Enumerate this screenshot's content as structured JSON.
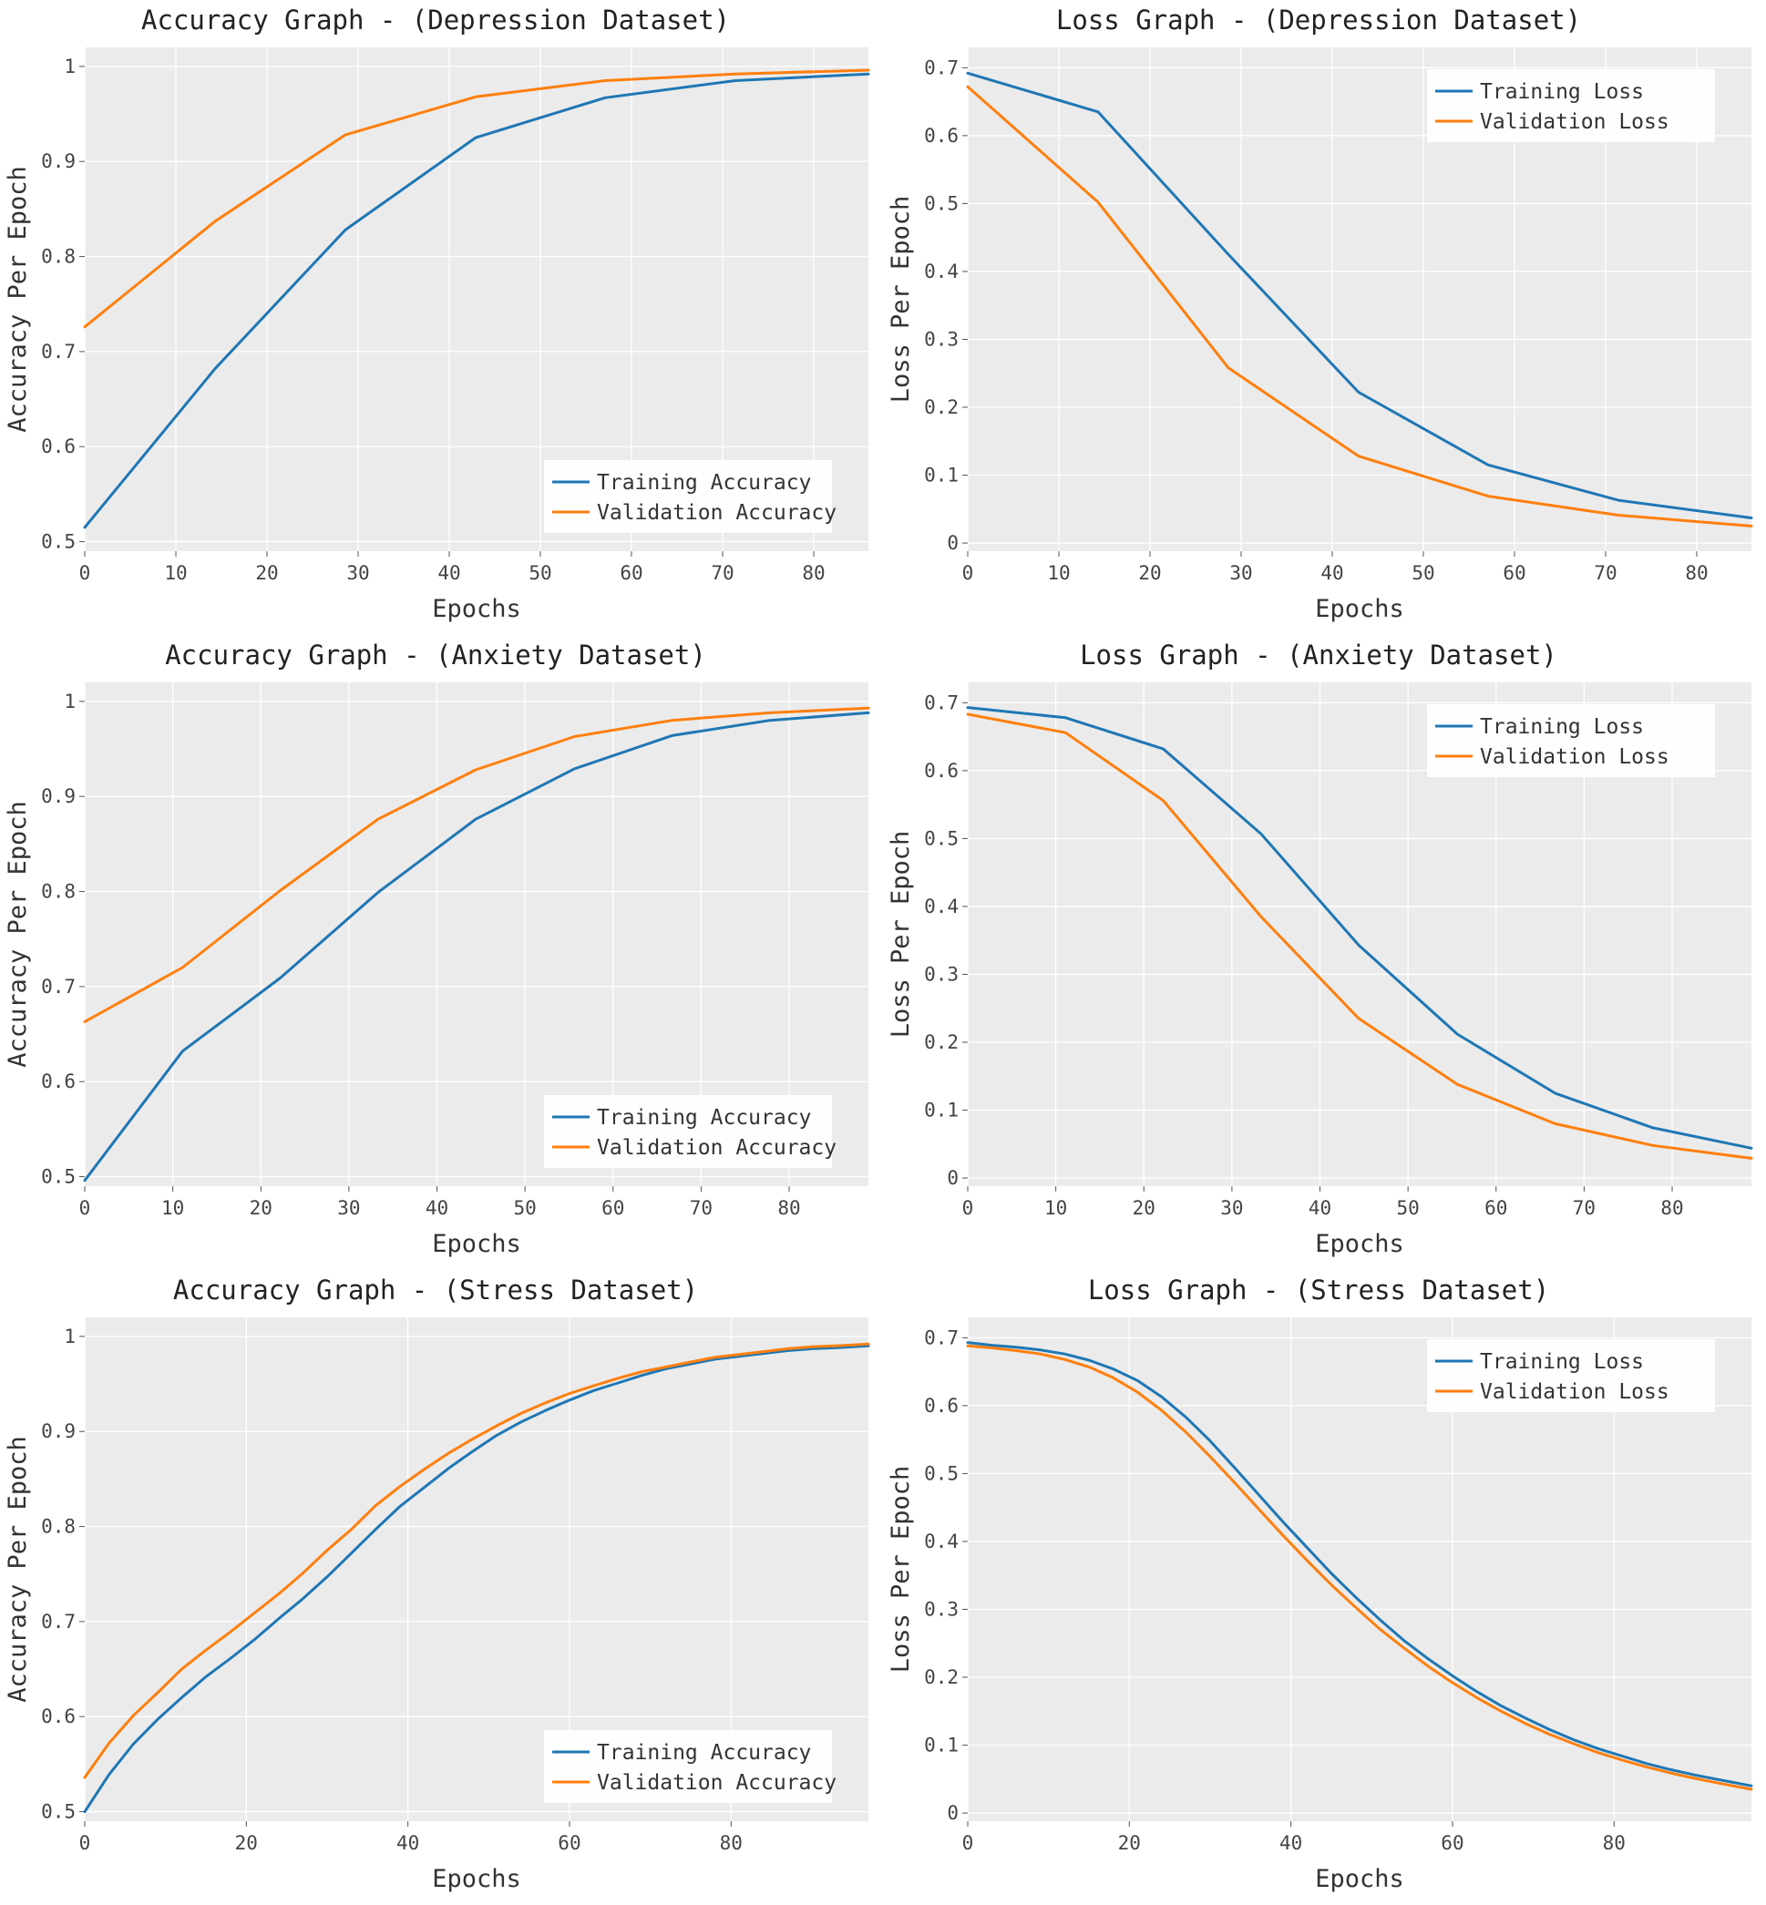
{
  "colors": {
    "training": "#1f77b4",
    "validation": "#ff7f0e",
    "plot_bg": "#ebebeb",
    "grid": "#ffffff"
  },
  "chart_data": [
    {
      "type": "line",
      "title": "Accuracy Graph - (Depression Dataset)",
      "xlabel": "Epochs",
      "ylabel": "Accuracy Per Epoch",
      "xlim": [
        0,
        86
      ],
      "ylim": [
        0.49,
        1.02
      ],
      "xticks": [
        0,
        10,
        20,
        30,
        40,
        50,
        60,
        70,
        80
      ],
      "yticks": [
        0.5,
        0.6,
        0.7,
        0.8,
        0.9,
        1
      ],
      "ytick_labels": [
        "0.5",
        "0.6",
        "0.7",
        "0.8",
        "0.9",
        "1"
      ],
      "legend_position": "bottom-right",
      "grid": true,
      "series": [
        {
          "name": "Training Accuracy",
          "color": "#1f77b4",
          "x": [
            0,
            14.3,
            28.6,
            42.9,
            57.1,
            71.4,
            86
          ],
          "y": [
            0.515,
            0.682,
            0.828,
            0.925,
            0.967,
            0.985,
            0.992
          ]
        },
        {
          "name": "Validation Accuracy",
          "color": "#ff7f0e",
          "x": [
            0,
            14.3,
            28.6,
            42.9,
            57.1,
            71.4,
            86
          ],
          "y": [
            0.726,
            0.837,
            0.928,
            0.968,
            0.985,
            0.992,
            0.996
          ]
        }
      ]
    },
    {
      "type": "line",
      "title": "Loss Graph - (Depression Dataset)",
      "xlabel": "Epochs",
      "ylabel": "Loss Per Epoch",
      "xlim": [
        0,
        86
      ],
      "ylim": [
        -0.012,
        0.73
      ],
      "xticks": [
        0,
        10,
        20,
        30,
        40,
        50,
        60,
        70,
        80
      ],
      "yticks": [
        0,
        0.1,
        0.2,
        0.3,
        0.4,
        0.5,
        0.6,
        0.7
      ],
      "ytick_labels": [
        "0",
        "0.1",
        "0.2",
        "0.3",
        "0.4",
        "0.5",
        "0.6",
        "0.7"
      ],
      "legend_position": "top-right",
      "grid": true,
      "series": [
        {
          "name": "Training Loss",
          "color": "#1f77b4",
          "x": [
            0,
            14.3,
            28.6,
            42.9,
            57.1,
            71.4,
            86
          ],
          "y": [
            0.692,
            0.635,
            0.425,
            0.222,
            0.115,
            0.063,
            0.037
          ]
        },
        {
          "name": "Validation Loss",
          "color": "#ff7f0e",
          "x": [
            0,
            14.3,
            28.6,
            42.9,
            57.1,
            71.4,
            86
          ],
          "y": [
            0.672,
            0.502,
            0.258,
            0.128,
            0.069,
            0.041,
            0.025
          ]
        }
      ]
    },
    {
      "type": "line",
      "title": "Accuracy Graph - (Anxiety Dataset)",
      "xlabel": "Epochs",
      "ylabel": "Accuracy Per Epoch",
      "xlim": [
        0,
        89
      ],
      "ylim": [
        0.49,
        1.02
      ],
      "xticks": [
        0,
        10,
        20,
        30,
        40,
        50,
        60,
        70,
        80
      ],
      "yticks": [
        0.5,
        0.6,
        0.7,
        0.8,
        0.9,
        1
      ],
      "ytick_labels": [
        "0.5",
        "0.6",
        "0.7",
        "0.8",
        "0.9",
        "1"
      ],
      "legend_position": "bottom-right",
      "grid": true,
      "series": [
        {
          "name": "Training Accuracy",
          "color": "#1f77b4",
          "x": [
            0,
            11.1,
            22.2,
            33.3,
            44.4,
            55.6,
            66.7,
            77.8,
            89
          ],
          "y": [
            0.496,
            0.632,
            0.709,
            0.799,
            0.876,
            0.929,
            0.964,
            0.98,
            0.988
          ]
        },
        {
          "name": "Validation Accuracy",
          "color": "#ff7f0e",
          "x": [
            0,
            11.1,
            22.2,
            33.3,
            44.4,
            55.6,
            66.7,
            77.8,
            89
          ],
          "y": [
            0.663,
            0.72,
            0.801,
            0.876,
            0.928,
            0.963,
            0.98,
            0.988,
            0.993
          ]
        }
      ]
    },
    {
      "type": "line",
      "title": "Loss Graph - (Anxiety Dataset)",
      "xlabel": "Epochs",
      "ylabel": "Loss Per Epoch",
      "xlim": [
        0,
        89
      ],
      "ylim": [
        -0.012,
        0.73
      ],
      "xticks": [
        0,
        10,
        20,
        30,
        40,
        50,
        60,
        70,
        80
      ],
      "yticks": [
        0,
        0.1,
        0.2,
        0.3,
        0.4,
        0.5,
        0.6,
        0.7
      ],
      "ytick_labels": [
        "0",
        "0.1",
        "0.2",
        "0.3",
        "0.4",
        "0.5",
        "0.6",
        "0.7"
      ],
      "legend_position": "top-right",
      "grid": true,
      "series": [
        {
          "name": "Training Loss",
          "color": "#1f77b4",
          "x": [
            0,
            11.1,
            22.2,
            33.3,
            44.4,
            55.6,
            66.7,
            77.8,
            89
          ],
          "y": [
            0.693,
            0.678,
            0.632,
            0.507,
            0.343,
            0.212,
            0.125,
            0.074,
            0.044
          ]
        },
        {
          "name": "Validation Loss",
          "color": "#ff7f0e",
          "x": [
            0,
            11.1,
            22.2,
            33.3,
            44.4,
            55.6,
            66.7,
            77.8,
            89
          ],
          "y": [
            0.683,
            0.656,
            0.556,
            0.385,
            0.235,
            0.138,
            0.08,
            0.048,
            0.029
          ]
        }
      ]
    },
    {
      "type": "line",
      "title": "Accuracy Graph - (Stress Dataset)",
      "xlabel": "Epochs",
      "ylabel": "Accuracy Per Epoch",
      "xlim": [
        0,
        97
      ],
      "ylim": [
        0.49,
        1.02
      ],
      "xticks": [
        0,
        20,
        40,
        60,
        80
      ],
      "yticks": [
        0.5,
        0.6,
        0.7,
        0.8,
        0.9,
        1
      ],
      "ytick_labels": [
        "0.5",
        "0.6",
        "0.7",
        "0.8",
        "0.9",
        "1"
      ],
      "legend_position": "bottom-right",
      "grid": true,
      "series": [
        {
          "name": "Training Accuracy",
          "color": "#1f77b4",
          "x": [
            0,
            3,
            6,
            9,
            12,
            15,
            18,
            21,
            24,
            27,
            30,
            33,
            36,
            39,
            42,
            45,
            48,
            51,
            54,
            57,
            60,
            63,
            66,
            69,
            72,
            75,
            78,
            81,
            84,
            87,
            90,
            93,
            97
          ],
          "y": [
            0.5,
            0.539,
            0.571,
            0.597,
            0.62,
            0.642,
            0.661,
            0.681,
            0.703,
            0.724,
            0.747,
            0.772,
            0.797,
            0.821,
            0.841,
            0.861,
            0.879,
            0.896,
            0.91,
            0.922,
            0.933,
            0.943,
            0.951,
            0.959,
            0.966,
            0.971,
            0.976,
            0.979,
            0.982,
            0.985,
            0.987,
            0.988,
            0.99
          ]
        },
        {
          "name": "Validation Accuracy",
          "color": "#ff7f0e",
          "x": [
            0,
            3,
            6,
            9,
            12,
            15,
            18,
            21,
            24,
            27,
            30,
            33,
            36,
            39,
            42,
            45,
            48,
            51,
            54,
            57,
            60,
            63,
            66,
            69,
            72,
            75,
            78,
            81,
            84,
            87,
            90,
            93,
            97
          ],
          "y": [
            0.536,
            0.572,
            0.601,
            0.625,
            0.65,
            0.67,
            0.689,
            0.709,
            0.729,
            0.751,
            0.775,
            0.797,
            0.822,
            0.842,
            0.86,
            0.877,
            0.892,
            0.906,
            0.919,
            0.93,
            0.94,
            0.948,
            0.956,
            0.963,
            0.968,
            0.973,
            0.978,
            0.981,
            0.984,
            0.987,
            0.989,
            0.99,
            0.992
          ]
        }
      ]
    },
    {
      "type": "line",
      "title": "Loss Graph - (Stress Dataset)",
      "xlabel": "Epochs",
      "ylabel": "Loss Per Epoch",
      "xlim": [
        0,
        97
      ],
      "ylim": [
        -0.012,
        0.73
      ],
      "xticks": [
        0,
        20,
        40,
        60,
        80
      ],
      "yticks": [
        0,
        0.1,
        0.2,
        0.3,
        0.4,
        0.5,
        0.6,
        0.7
      ],
      "ytick_labels": [
        "0",
        "0.1",
        "0.2",
        "0.3",
        "0.4",
        "0.5",
        "0.6",
        "0.7"
      ],
      "legend_position": "top-right",
      "grid": true,
      "series": [
        {
          "name": "Training Loss",
          "color": "#1f77b4",
          "x": [
            0,
            3,
            6,
            9,
            12,
            15,
            18,
            21,
            24,
            27,
            30,
            33,
            36,
            39,
            42,
            45,
            48,
            51,
            54,
            57,
            60,
            63,
            66,
            69,
            72,
            75,
            78,
            81,
            84,
            87,
            90,
            93,
            97
          ],
          "y": [
            0.693,
            0.689,
            0.686,
            0.682,
            0.676,
            0.667,
            0.654,
            0.637,
            0.613,
            0.583,
            0.548,
            0.509,
            0.469,
            0.429,
            0.391,
            0.353,
            0.318,
            0.285,
            0.254,
            0.227,
            0.202,
            0.179,
            0.158,
            0.14,
            0.123,
            0.108,
            0.095,
            0.084,
            0.073,
            0.064,
            0.056,
            0.049,
            0.04
          ]
        },
        {
          "name": "Validation Loss",
          "color": "#ff7f0e",
          "x": [
            0,
            3,
            6,
            9,
            12,
            15,
            18,
            21,
            24,
            27,
            30,
            33,
            36,
            39,
            42,
            45,
            48,
            51,
            54,
            57,
            60,
            63,
            66,
            69,
            72,
            75,
            78,
            81,
            84,
            87,
            90,
            93,
            97
          ],
          "y": [
            0.688,
            0.685,
            0.681,
            0.676,
            0.668,
            0.657,
            0.641,
            0.62,
            0.593,
            0.561,
            0.525,
            0.487,
            0.448,
            0.409,
            0.372,
            0.336,
            0.303,
            0.271,
            0.243,
            0.216,
            0.192,
            0.17,
            0.15,
            0.132,
            0.116,
            0.102,
            0.089,
            0.078,
            0.068,
            0.059,
            0.051,
            0.044,
            0.035
          ]
        }
      ]
    }
  ]
}
